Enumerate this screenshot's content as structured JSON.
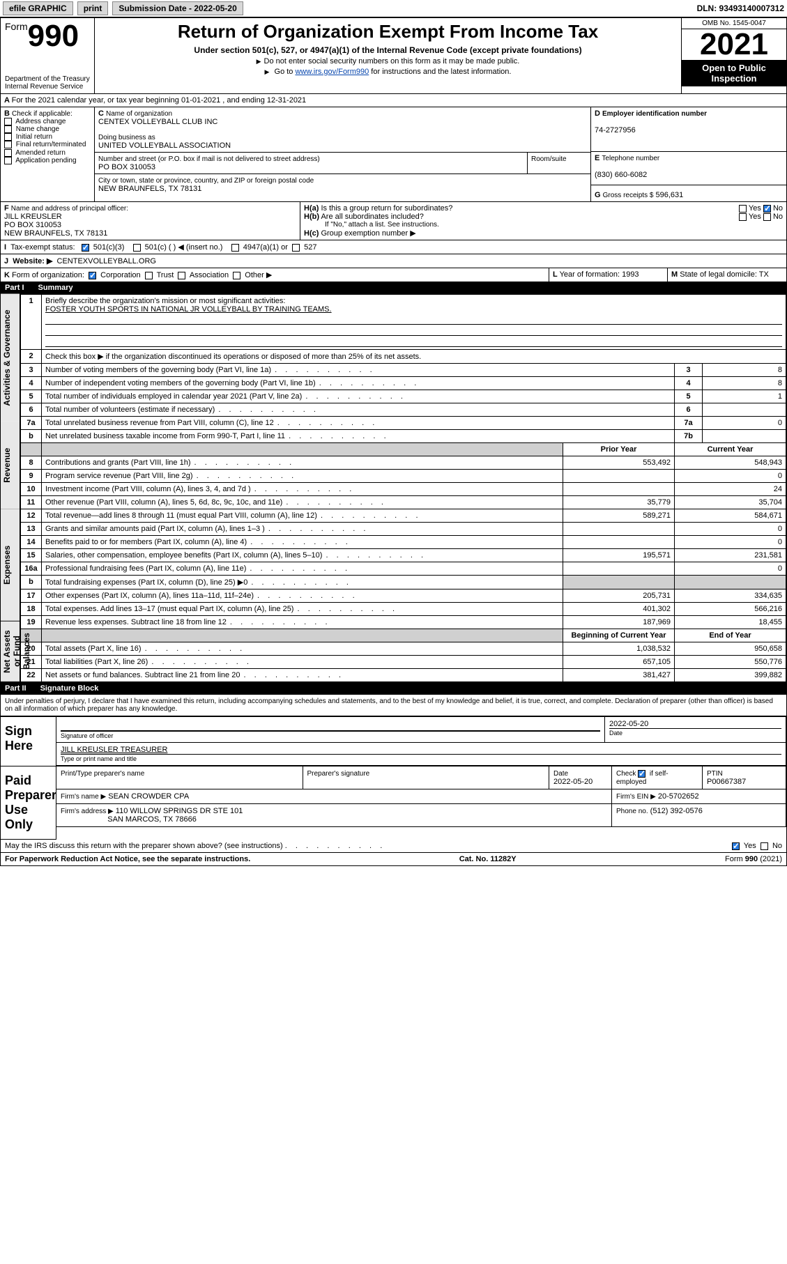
{
  "colors": {
    "link": "#0645ad",
    "check": "#2a7de1",
    "headerbg": "#000000",
    "headerfg": "#ffffff",
    "grey": "#d0d0d0"
  },
  "topbar": {
    "efile": "efile GRAPHIC",
    "print": "print",
    "sub_label": "Submission Date - 2022-05-20",
    "dln": "DLN: 93493140007312"
  },
  "header": {
    "form_word": "Form",
    "form_no": "990",
    "dept": "Department of the Treasury",
    "irs": "Internal Revenue Service",
    "title": "Return of Organization Exempt From Income Tax",
    "subtitle": "Under section 501(c), 527, or 4947(a)(1) of the Internal Revenue Code (except private foundations)",
    "note1": "Do not enter social security numbers on this form as it may be made public.",
    "note2_pre": "Go to ",
    "note2_link": "www.irs.gov/Form990",
    "note2_post": " for instructions and the latest information.",
    "omb": "OMB No. 1545-0047",
    "year": "2021",
    "open": "Open to Public Inspection"
  },
  "A": {
    "text": "For the 2021 calendar year, or tax year beginning 01-01-2021   , and ending 12-31-2021"
  },
  "B": {
    "label": "Check if applicable:",
    "items": [
      "Address change",
      "Name change",
      "Initial return",
      "Final return/terminated",
      "Amended return",
      "Application pending"
    ]
  },
  "C": {
    "name_label": "Name of organization",
    "name": "CENTEX VOLLEYBALL CLUB INC",
    "dba_label": "Doing business as",
    "dba": "UNITED VOLLEYBALL ASSOCIATION",
    "street_label": "Number and street (or P.O. box if mail is not delivered to street address)",
    "room_label": "Room/suite",
    "street": "PO BOX 310053",
    "city_label": "City or town, state or province, country, and ZIP or foreign postal code",
    "city": "NEW BRAUNFELS, TX  78131"
  },
  "D": {
    "label": "Employer identification number",
    "val": "74-2727956"
  },
  "E": {
    "label": "Telephone number",
    "val": "(830) 660-6082"
  },
  "G": {
    "label": "Gross receipts $",
    "val": "596,631"
  },
  "F": {
    "label": "Name and address of principal officer:",
    "name": "JILL KREUSLER",
    "addr1": "PO BOX 310053",
    "addr2": "NEW BRAUNFELS, TX  78131"
  },
  "H": {
    "a": "Is this a group return for subordinates?",
    "b": "Are all subordinates included?",
    "note": "If \"No,\" attach a list. See instructions.",
    "c": "Group exemption number ▶",
    "yes": "Yes",
    "no": "No"
  },
  "I": {
    "label": "Tax-exempt status:",
    "opt1": "501(c)(3)",
    "opt2": "501(c) (  ) ◀ (insert no.)",
    "opt3": "4947(a)(1) or",
    "opt4": "527"
  },
  "J": {
    "label": "Website: ▶",
    "val": "CENTEXVOLLEYBALL.ORG"
  },
  "K": {
    "label": "Form of organization:",
    "opts": [
      "Corporation",
      "Trust",
      "Association",
      "Other ▶"
    ]
  },
  "L": {
    "label": "Year of formation:",
    "val": "1993"
  },
  "M": {
    "label": "State of legal domicile:",
    "val": "TX"
  },
  "part1": {
    "title": "Part I",
    "name": "Summary",
    "q1": "Briefly describe the organization's mission or most significant activities:",
    "q1_val": "FOSTER YOUTH SPORTS IN NATIONAL JR VOLLEYBALL BY TRAINING TEAMS.",
    "q2": "Check this box ▶     if the organization discontinued its operations or disposed of more than 25% of its net assets.",
    "side_ag": "Activities & Governance",
    "side_rev": "Revenue",
    "side_exp": "Expenses",
    "side_na": "Net Assets or Fund Balances",
    "col_prior": "Prior Year",
    "col_curr": "Current Year",
    "col_beg": "Beginning of Current Year",
    "col_end": "End of Year",
    "rows_ag": [
      {
        "n": "3",
        "d": "Number of voting members of the governing body (Part VI, line 1a)",
        "box": "3",
        "v": "8"
      },
      {
        "n": "4",
        "d": "Number of independent voting members of the governing body (Part VI, line 1b)",
        "box": "4",
        "v": "8"
      },
      {
        "n": "5",
        "d": "Total number of individuals employed in calendar year 2021 (Part V, line 2a)",
        "box": "5",
        "v": "1"
      },
      {
        "n": "6",
        "d": "Total number of volunteers (estimate if necessary)",
        "box": "6",
        "v": ""
      },
      {
        "n": "7a",
        "d": "Total unrelated business revenue from Part VIII, column (C), line 12",
        "box": "7a",
        "v": "0"
      },
      {
        "n": "b",
        "d": "Net unrelated business taxable income from Form 990-T, Part I, line 11",
        "box": "7b",
        "v": ""
      }
    ],
    "rows_rev": [
      {
        "n": "8",
        "d": "Contributions and grants (Part VIII, line 1h)",
        "p": "553,492",
        "c": "548,943"
      },
      {
        "n": "9",
        "d": "Program service revenue (Part VIII, line 2g)",
        "p": "",
        "c": "0"
      },
      {
        "n": "10",
        "d": "Investment income (Part VIII, column (A), lines 3, 4, and 7d )",
        "p": "",
        "c": "24"
      },
      {
        "n": "11",
        "d": "Other revenue (Part VIII, column (A), lines 5, 6d, 8c, 9c, 10c, and 11e)",
        "p": "35,779",
        "c": "35,704"
      },
      {
        "n": "12",
        "d": "Total revenue—add lines 8 through 11 (must equal Part VIII, column (A), line 12)",
        "p": "589,271",
        "c": "584,671"
      }
    ],
    "rows_exp": [
      {
        "n": "13",
        "d": "Grants and similar amounts paid (Part IX, column (A), lines 1–3 )",
        "p": "",
        "c": "0"
      },
      {
        "n": "14",
        "d": "Benefits paid to or for members (Part IX, column (A), line 4)",
        "p": "",
        "c": "0"
      },
      {
        "n": "15",
        "d": "Salaries, other compensation, employee benefits (Part IX, column (A), lines 5–10)",
        "p": "195,571",
        "c": "231,581"
      },
      {
        "n": "16a",
        "d": "Professional fundraising fees (Part IX, column (A), line 11e)",
        "p": "",
        "c": "0"
      },
      {
        "n": "b",
        "d": "Total fundraising expenses (Part IX, column (D), line 25) ▶0",
        "p": "grey",
        "c": "grey"
      },
      {
        "n": "17",
        "d": "Other expenses (Part IX, column (A), lines 11a–11d, 11f–24e)",
        "p": "205,731",
        "c": "334,635"
      },
      {
        "n": "18",
        "d": "Total expenses. Add lines 13–17 (must equal Part IX, column (A), line 25)",
        "p": "401,302",
        "c": "566,216"
      },
      {
        "n": "19",
        "d": "Revenue less expenses. Subtract line 18 from line 12",
        "p": "187,969",
        "c": "18,455"
      }
    ],
    "rows_na": [
      {
        "n": "20",
        "d": "Total assets (Part X, line 16)",
        "p": "1,038,532",
        "c": "950,658"
      },
      {
        "n": "21",
        "d": "Total liabilities (Part X, line 26)",
        "p": "657,105",
        "c": "550,776"
      },
      {
        "n": "22",
        "d": "Net assets or fund balances. Subtract line 21 from line 20",
        "p": "381,427",
        "c": "399,882"
      }
    ]
  },
  "part2": {
    "title": "Part II",
    "name": "Signature Block",
    "penalty": "Under penalties of perjury, I declare that I have examined this return, including accompanying schedules and statements, and to the best of my knowledge and belief, it is true, correct, and complete. Declaration of preparer (other than officer) is based on all information of which preparer has any knowledge.",
    "sign_here": "Sign Here",
    "sig_officer": "Signature of officer",
    "sig_date": "Date",
    "sig_date_val": "2022-05-20",
    "sig_name": "JILL KREUSLER  TREASURER",
    "sig_name_label": "Type or print name and title",
    "paid": "Paid Preparer Use Only",
    "prep_name_label": "Print/Type preparer's name",
    "prep_sig_label": "Preparer's signature",
    "prep_date_label": "Date",
    "prep_date": "2022-05-20",
    "prep_check": "Check        if self-employed",
    "ptin_label": "PTIN",
    "ptin": "P00667387",
    "firm_name_label": "Firm's name   ▶",
    "firm_name": "SEAN CROWDER CPA",
    "firm_ein_label": "Firm's EIN ▶",
    "firm_ein": "20-5702652",
    "firm_addr_label": "Firm's address ▶",
    "firm_addr1": "110 WILLOW SPRINGS DR STE 101",
    "firm_addr2": "SAN MARCOS, TX  78666",
    "firm_phone_label": "Phone no.",
    "firm_phone": "(512) 392-0576",
    "discuss": "May the IRS discuss this return with the preparer shown above? (see instructions)"
  },
  "footer": {
    "pra": "For Paperwork Reduction Act Notice, see the separate instructions.",
    "cat": "Cat. No. 11282Y",
    "form": "Form 990 (2021)"
  }
}
